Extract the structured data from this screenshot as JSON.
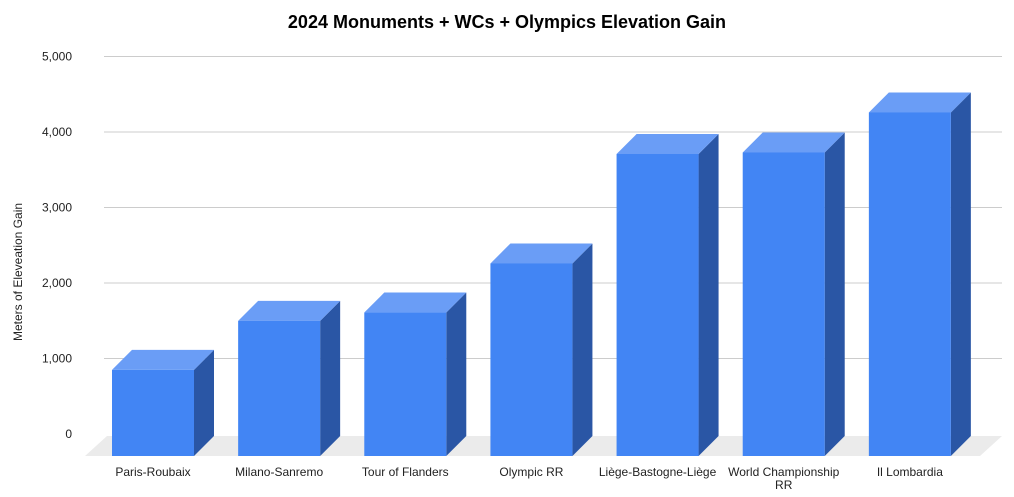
{
  "chart_data": {
    "type": "bar",
    "title": "2024 Monuments + WCs + Olympics Elevation Gain",
    "xlabel": "",
    "ylabel": "Meters of Eleveation Gain",
    "ylim": [
      0,
      5000
    ],
    "yticks": [
      "0",
      "1,000",
      "2,000",
      "3,000",
      "4,000",
      "5,000"
    ],
    "grid": true,
    "legend": "none",
    "style": "3d",
    "categories": [
      "Paris-Roubaix",
      "Milano-Sanremo",
      "Tour of Flanders",
      "Olympic RR",
      "Liège-Bastogne-Liège",
      "World Championship RR",
      "Il Lombardia"
    ],
    "values": [
      1140,
      1790,
      1900,
      2550,
      4000,
      4020,
      4550
    ],
    "colors": {
      "front": "#4285f4",
      "top": "#6a9df6",
      "side": "#2a56a5",
      "floor": "#ebebeb"
    }
  }
}
